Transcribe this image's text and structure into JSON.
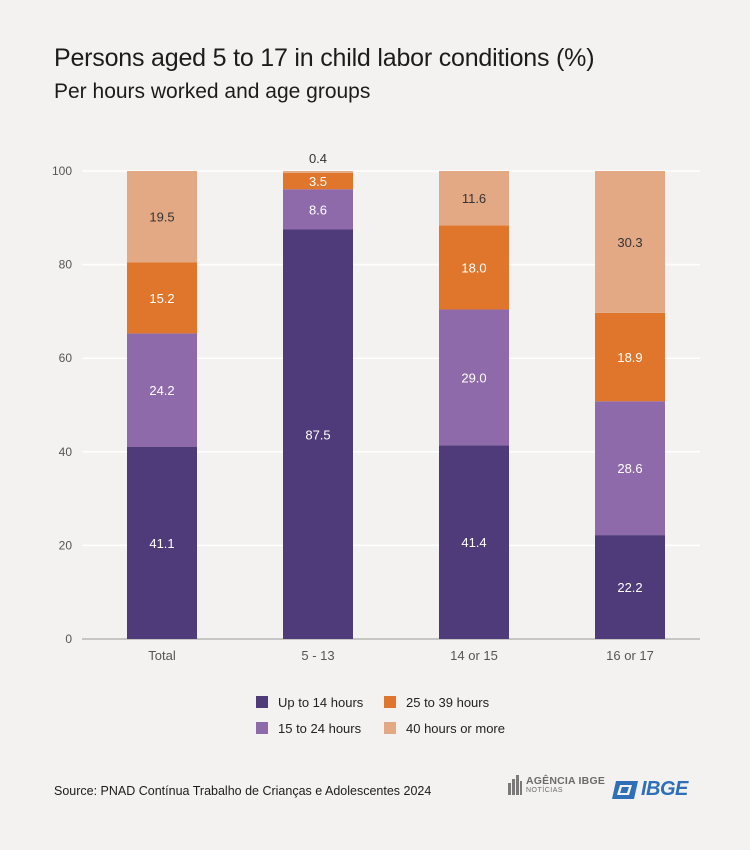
{
  "title": "Persons aged 5 to 17 in child labor conditions (%)",
  "subtitle": "Per hours worked and age groups",
  "source": "Source: PNAD Contínua Trabalho de Crianças e Adolescentes 2024",
  "logos": {
    "agencia_line1": "AGÊNCIA IBGE",
    "agencia_line2": "NOTÍCIAS",
    "ibge": "IBGE"
  },
  "colors": {
    "up_to_14": "#4f3a7a",
    "15_to_24": "#8f6aab",
    "25_to_39": "#e0762c",
    "40_plus": "#e3a985",
    "gridline": "#ffffff",
    "axis": "#9a9a9a"
  },
  "chart_data": {
    "type": "bar",
    "stacked": true,
    "categories": [
      "Total",
      "5 - 13",
      "14 or 15",
      "16 or 17"
    ],
    "series": [
      {
        "name": "Up to 14 hours",
        "color": "#4f3a7a",
        "values": [
          41.1,
          87.5,
          41.4,
          22.2
        ]
      },
      {
        "name": "15 to 24 hours",
        "color": "#8f6aab",
        "values": [
          24.2,
          8.6,
          29.0,
          28.6
        ]
      },
      {
        "name": "25 to 39 hours",
        "color": "#e0762c",
        "values": [
          15.2,
          3.5,
          18.0,
          18.9
        ]
      },
      {
        "name": "40 hours or more",
        "color": "#e3a985",
        "values": [
          19.5,
          0.4,
          11.6,
          30.3
        ]
      }
    ],
    "ylim": [
      0,
      100
    ],
    "yticks": [
      0,
      20,
      40,
      60,
      80,
      100
    ],
    "grid": true,
    "legend_position": "bottom"
  },
  "legend": [
    {
      "label": "Up to 14 hours",
      "color": "#4f3a7a"
    },
    {
      "label": "25 to 39 hours",
      "color": "#e0762c"
    },
    {
      "label": "15 to 24 hours",
      "color": "#8f6aab"
    },
    {
      "label": "40 hours or more",
      "color": "#e3a985"
    }
  ]
}
